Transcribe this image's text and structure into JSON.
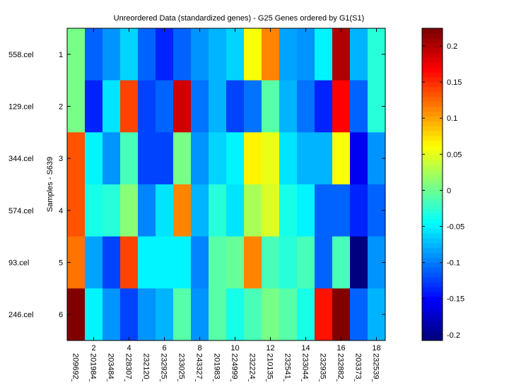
{
  "chart_data": {
    "type": "heatmap",
    "title": "Unreordered Data (standardized genes) - G25 Genes ordered by G1(S1)",
    "ylabel": "Samples - S639",
    "xlabel": "",
    "colormap": "jet",
    "clim": [
      -0.208,
      0.2245
    ],
    "x_ticks": [
      "2",
      "4",
      "6",
      "8",
      "10",
      "12",
      "14",
      "16",
      "18"
    ],
    "x_tick_values": [
      2,
      4,
      6,
      8,
      10,
      12,
      14,
      16,
      18
    ],
    "y_ticks": [
      "1",
      "2",
      "3",
      "4",
      "5",
      "6"
    ],
    "genes": [
      "209692_",
      "201984_",
      "203484_",
      "228307_",
      "232120_",
      "232925_",
      "233025_",
      "243327_",
      "201983_",
      "224999_",
      "232224_",
      "210135_",
      "232541_",
      "233044_",
      "232935_",
      "232882_",
      "203373_",
      "232539_"
    ],
    "samples": [
      "558.cel",
      "129.cel",
      "344.cel",
      "574.cel",
      "93.cel",
      "246.cel"
    ],
    "values": [
      [
        0.004,
        -0.113,
        -0.093,
        -0.065,
        -0.113,
        -0.137,
        -0.113,
        -0.093,
        -0.074,
        -0.065,
        0.062,
        0.11,
        -0.083,
        -0.087,
        -0.046,
        0.201,
        -0.076,
        -0.031
      ],
      [
        0.008,
        -0.137,
        -0.059,
        0.142,
        -0.124,
        -0.113,
        0.186,
        -0.104,
        -0.074,
        -0.124,
        -0.106,
        -0.011,
        -0.074,
        -0.104,
        -0.139,
        0.164,
        -0.113,
        -0.026
      ],
      [
        0.134,
        -0.046,
        -0.087,
        -0.018,
        -0.122,
        -0.122,
        0.004,
        -0.087,
        -0.065,
        -0.046,
        0.069,
        0.049,
        -0.059,
        -0.078,
        -0.078,
        0.062,
        -0.154,
        -0.087
      ],
      [
        0.134,
        -0.039,
        -0.026,
        0.015,
        -0.096,
        -0.059,
        0.116,
        -0.078,
        -0.026,
        -0.057,
        0.026,
        0.043,
        -0.039,
        -0.052,
        -0.113,
        -0.113,
        -0.134,
        -0.113
      ],
      [
        0.121,
        -0.083,
        -0.122,
        0.14,
        -0.046,
        -0.052,
        -0.046,
        -0.096,
        -0.011,
        -0.003,
        0.116,
        -0.018,
        -0.026,
        -0.018,
        -0.113,
        -0.018,
        -0.208,
        -0.087
      ],
      [
        0.224,
        -0.046,
        -0.093,
        -0.122,
        -0.087,
        -0.078,
        -0.009,
        -0.087,
        -0.011,
        -0.033,
        -0.018,
        0.008,
        -0.009,
        -0.033,
        0.157,
        0.224,
        -0.113,
        -0.074
      ]
    ],
    "colorbar": {
      "ticks": [
        0.2,
        0.15,
        0.1,
        0.05,
        0,
        -0.05,
        -0.1,
        -0.15,
        -0.2
      ],
      "tick_labels": [
        "0.2",
        "0.15",
        "0.1",
        "0.05",
        "0",
        "-0.05",
        "-0.1",
        "-0.15",
        "-0.2"
      ]
    }
  }
}
